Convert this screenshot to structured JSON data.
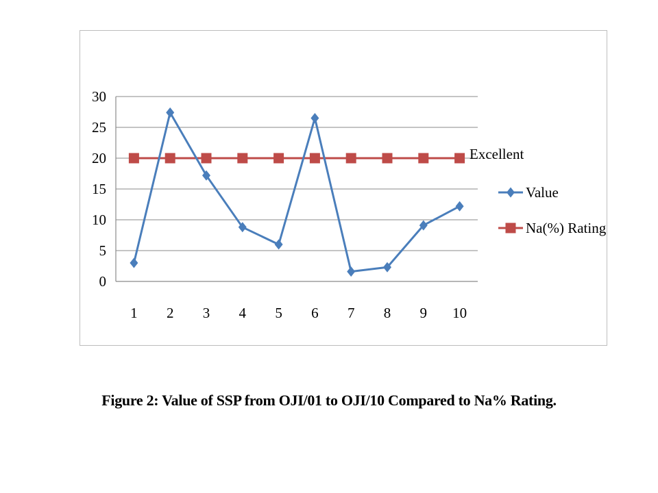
{
  "caption": "Figure 2: Value of SSP from OJI/01 to OJI/10 Compared to Na% Rating.",
  "chart_data": {
    "type": "line",
    "categories": [
      "1",
      "2",
      "3",
      "4",
      "5",
      "6",
      "7",
      "8",
      "9",
      "10"
    ],
    "series": [
      {
        "name": "Value",
        "values": [
          3.0,
          27.4,
          17.2,
          8.8,
          6.0,
          26.5,
          1.6,
          2.3,
          9.1,
          12.2
        ],
        "color": "#4a7ebb",
        "marker": "diamond"
      },
      {
        "name": "Na(%) Rating",
        "values": [
          20,
          20,
          20,
          20,
          20,
          20,
          20,
          20,
          20,
          20
        ],
        "color": "#be4b48",
        "marker": "square"
      }
    ],
    "yticks": [
      0,
      5,
      10,
      15,
      20,
      25,
      30
    ],
    "ylim": [
      0,
      30
    ],
    "grid": true,
    "legend_position": "right",
    "annotation": "Excellent"
  }
}
